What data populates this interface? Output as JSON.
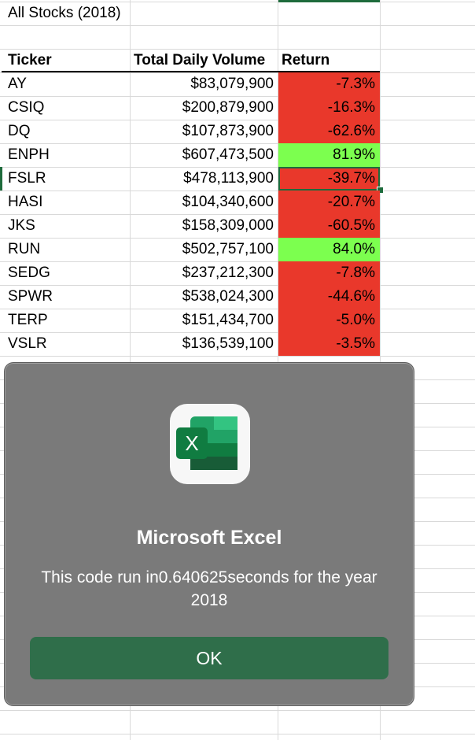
{
  "sheet": {
    "title": "All Stocks (2018)",
    "headers": {
      "ticker": "Ticker",
      "volume": "Total Daily Volume",
      "ret": "Return"
    },
    "rows": [
      {
        "ticker": "AY",
        "volume": "$83,079,900",
        "ret": "-7.3%",
        "status": "neg"
      },
      {
        "ticker": "CSIQ",
        "volume": "$200,879,900",
        "ret": "-16.3%",
        "status": "neg"
      },
      {
        "ticker": "DQ",
        "volume": "$107,873,900",
        "ret": "-62.6%",
        "status": "neg"
      },
      {
        "ticker": "ENPH",
        "volume": "$607,473,500",
        "ret": "81.9%",
        "status": "pos"
      },
      {
        "ticker": "FSLR",
        "volume": "$478,113,900",
        "ret": "-39.7%",
        "status": "neg"
      },
      {
        "ticker": "HASI",
        "volume": "$104,340,600",
        "ret": "-20.7%",
        "status": "neg"
      },
      {
        "ticker": "JKS",
        "volume": "$158,309,000",
        "ret": "-60.5%",
        "status": "neg"
      },
      {
        "ticker": "RUN",
        "volume": "$502,757,100",
        "ret": "84.0%",
        "status": "pos"
      },
      {
        "ticker": "SEDG",
        "volume": "$237,212,300",
        "ret": "-7.8%",
        "status": "neg"
      },
      {
        "ticker": "SPWR",
        "volume": "$538,024,300",
        "ret": "-44.6%",
        "status": "neg"
      },
      {
        "ticker": "TERP",
        "volume": "$151,434,700",
        "ret": "-5.0%",
        "status": "neg"
      },
      {
        "ticker": "VSLR",
        "volume": "$136,539,100",
        "ret": "-3.5%",
        "status": "neg"
      }
    ],
    "colors": {
      "negative": "#e9382b",
      "positive": "#7cff4f",
      "selection": "#1e6b3c"
    }
  },
  "dialog": {
    "icon": "excel-icon",
    "title": "Microsoft Excel",
    "message": "This code run in0.640625seconds for the year 2018",
    "ok_label": "OK"
  }
}
